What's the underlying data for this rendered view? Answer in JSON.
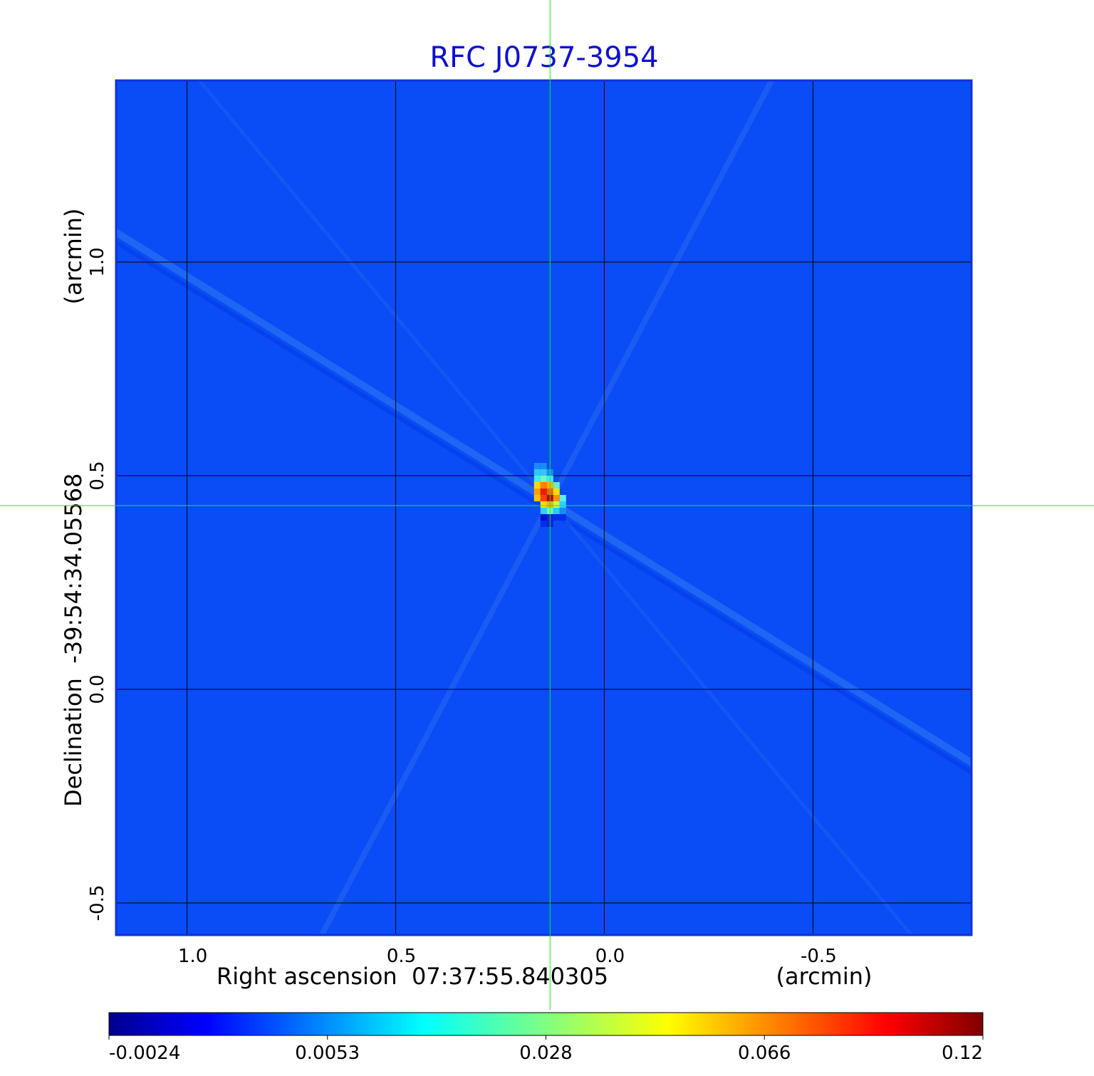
{
  "title": "RFC J0737-3954",
  "colors": {
    "title": "#1010d0",
    "crosshair": "#00ff00",
    "grid": "#000000",
    "background_map": "#0a4cf5",
    "frame": "#1030e0"
  },
  "chart_data": {
    "type": "heatmap",
    "title": "RFC J0737-3954",
    "xlabel": "Right ascension  07:37:55.840305",
    "xunit": "(arcmin)",
    "ylabel": "Declination  -39:54:34.05568",
    "yunit": "(arcmin)",
    "xlim": [
      1.17,
      -0.88
    ],
    "ylim": [
      -0.575,
      1.425
    ],
    "x_ticks": [
      1.0,
      0.5,
      0.0,
      -0.5
    ],
    "x_tick_labels": [
      "1.0",
      "0.5",
      "0.0",
      "-0.5"
    ],
    "y_ticks": [
      1.0,
      0.5,
      0.0,
      -0.5
    ],
    "y_tick_labels": [
      "1.0",
      "0.5",
      "0.0",
      "-0.5"
    ],
    "grid": true,
    "crosshair": {
      "x": 0.13,
      "y": 0.43
    },
    "source_peak": {
      "x": 0.13,
      "y": 0.44,
      "value": 0.12
    },
    "colorbar": {
      "colormap": "jet",
      "scale": "nonlinear",
      "ticks": [
        -0.0024,
        0.0053,
        0.028,
        0.066,
        0.12
      ],
      "tick_labels": [
        "-0.0024",
        "0.0053",
        "0.028",
        "0.066",
        "0.12"
      ]
    }
  }
}
